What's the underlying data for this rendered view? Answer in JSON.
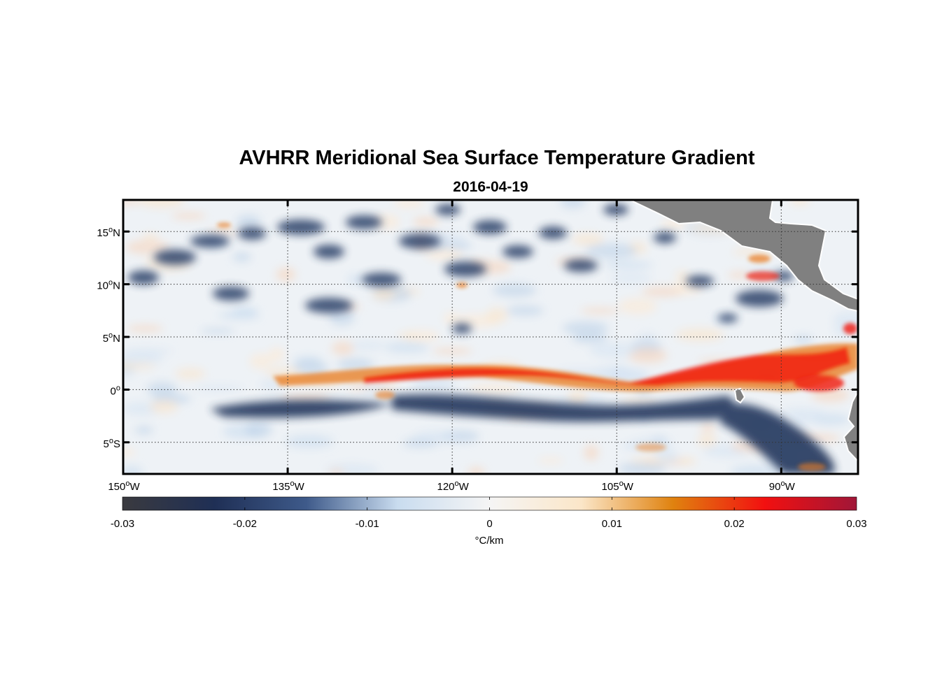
{
  "title": "AVHRR Meridional Sea Surface Temperature Gradient",
  "subtitle": "2016-04-19",
  "map": {
    "lon_range": [
      -150,
      -83
    ],
    "lat_range": [
      -8,
      18
    ],
    "grid": "dotted",
    "lon_ticks": [
      {
        "value": -150,
        "num": "150",
        "hemi": "W"
      },
      {
        "value": -135,
        "num": "135",
        "hemi": "W"
      },
      {
        "value": -120,
        "num": "120",
        "hemi": "W"
      },
      {
        "value": -105,
        "num": "105",
        "hemi": "W"
      },
      {
        "value": -90,
        "num": "90",
        "hemi": "W"
      }
    ],
    "lat_ticks": [
      {
        "value": 15,
        "num": "15",
        "hemi": "N"
      },
      {
        "value": 10,
        "num": "10",
        "hemi": "N"
      },
      {
        "value": 5,
        "num": "5",
        "hemi": "N"
      },
      {
        "value": 0,
        "num": "0",
        "hemi": ""
      },
      {
        "value": -5,
        "num": "5",
        "hemi": "S"
      }
    ],
    "degree_symbol": "o",
    "land_color": "#808080",
    "features": {
      "warm_front": {
        "sign": "positive",
        "lon_from": -136,
        "lon_to": -84,
        "lat_center_west": 1.2,
        "lat_center_east": 2.8
      },
      "cold_band_south": {
        "sign": "negative",
        "lon_from": -140,
        "lon_to": -84,
        "lat_center": -1.5
      },
      "cold_patches_north": {
        "sign": "negative",
        "lat_from": 7,
        "lat_to": 17
      }
    }
  },
  "colorbar": {
    "min": -0.03,
    "max": 0.03,
    "ticks": [
      "-0.03",
      "-0.02",
      "-0.01",
      "0",
      "0.01",
      "0.02",
      "0.03"
    ],
    "unit": "°C/km",
    "colormap": [
      "#3a3a3f",
      "#1f2f55",
      "#3e5a8a",
      "#c9dcef",
      "#f5f5f5",
      "#fbe6c8",
      "#e0820f",
      "#f21010",
      "#a01638"
    ]
  }
}
